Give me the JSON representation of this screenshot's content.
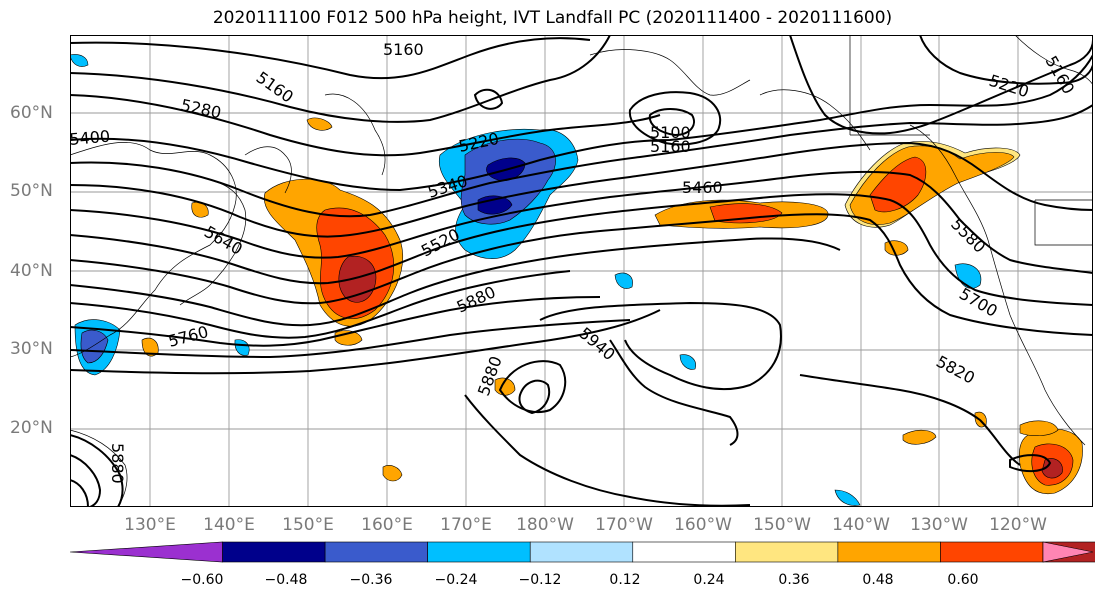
{
  "title": "2020111100 F012 500 hPa height, IVT Landfall PC (2020111400 - 2020111600)",
  "lat_labels": [
    "60°N",
    "50°N",
    "40°N",
    "30°N",
    "20°N"
  ],
  "lon_labels": [
    "130°E",
    "140°E",
    "150°E",
    "160°E",
    "170°E",
    "180°W",
    "170°W",
    "160°W",
    "150°W",
    "140°W",
    "130°W",
    "120°W"
  ],
  "contour_labels": [
    "5160",
    "5160",
    "5220",
    "5280",
    "5400",
    "5100",
    "5160",
    "5220",
    "5160",
    "5340",
    "5460",
    "5520",
    "5640",
    "5580",
    "5700",
    "5760",
    "5880",
    "5940",
    "5880",
    "5820",
    "5880"
  ],
  "colorbar": {
    "ticks": [
      "−0.60",
      "−0.48",
      "−0.36",
      "−0.24",
      "−0.12",
      "0.12",
      "0.24",
      "0.36",
      "0.48",
      "0.60"
    ],
    "colors": [
      "#9b30d0",
      "#00008b",
      "#3a5bcc",
      "#00bfff",
      "#b0e2ff",
      "#ffffff",
      "#ffe680",
      "#ffa500",
      "#ff4500",
      "#b22222",
      "#ff85b3"
    ]
  }
}
